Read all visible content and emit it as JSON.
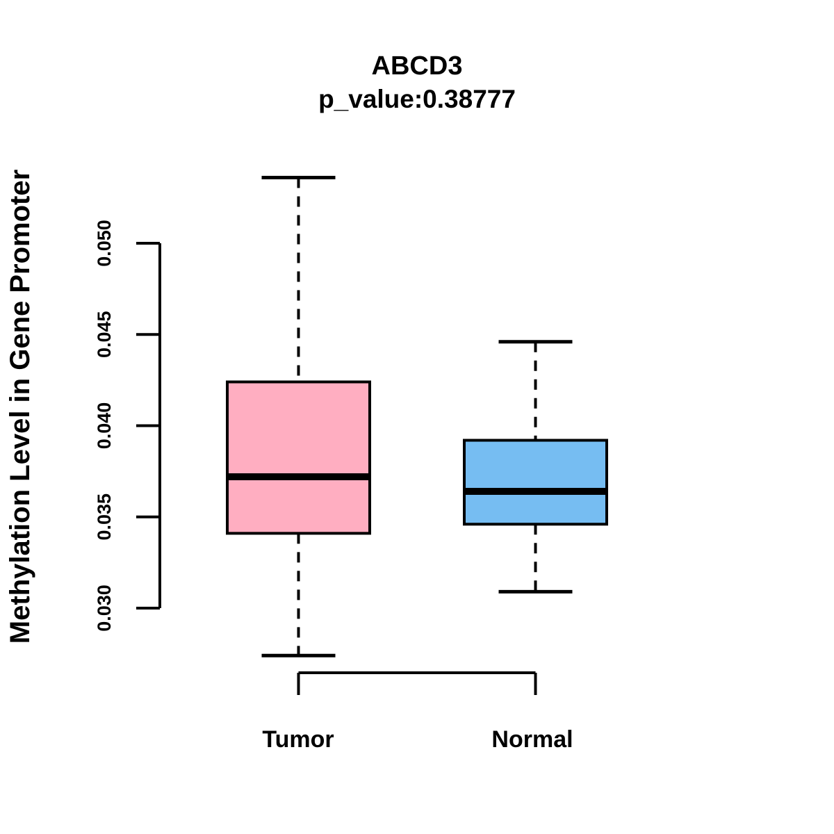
{
  "title": {
    "line1": "ABCD3",
    "line2": "p_value:0.38777"
  },
  "y_axis": {
    "label": "Methylation Level in Gene Promoter",
    "tick_labels": [
      "0.030",
      "0.035",
      "0.040",
      "0.045",
      "0.050"
    ]
  },
  "x_axis": {
    "categories": [
      "Tumor",
      "Normal"
    ]
  },
  "colors": {
    "tumor_fill": "#FFAEC1",
    "normal_fill": "#76BDF2",
    "stroke": "#000000",
    "background": "#FFFFFF"
  },
  "chart_data": {
    "type": "boxplot",
    "title": "ABCD3",
    "subtitle": "p_value:0.38777",
    "ylabel": "Methylation Level in Gene Promoter",
    "xlabel": "",
    "categories": [
      "Tumor",
      "Normal"
    ],
    "ylim": [
      0.03,
      0.05
    ],
    "yticks": [
      0.03,
      0.035,
      0.04,
      0.045,
      0.05
    ],
    "grid": false,
    "legend": false,
    "series": [
      {
        "name": "Tumor",
        "lower_whisker": 0.0274,
        "q1": 0.0341,
        "median": 0.0372,
        "q3": 0.0424,
        "upper_whisker": 0.0536,
        "fill_color": "#FFAEC1"
      },
      {
        "name": "Normal",
        "lower_whisker": 0.0309,
        "q1": 0.0346,
        "median": 0.0364,
        "q3": 0.0392,
        "upper_whisker": 0.0446,
        "fill_color": "#76BDF2"
      }
    ]
  }
}
